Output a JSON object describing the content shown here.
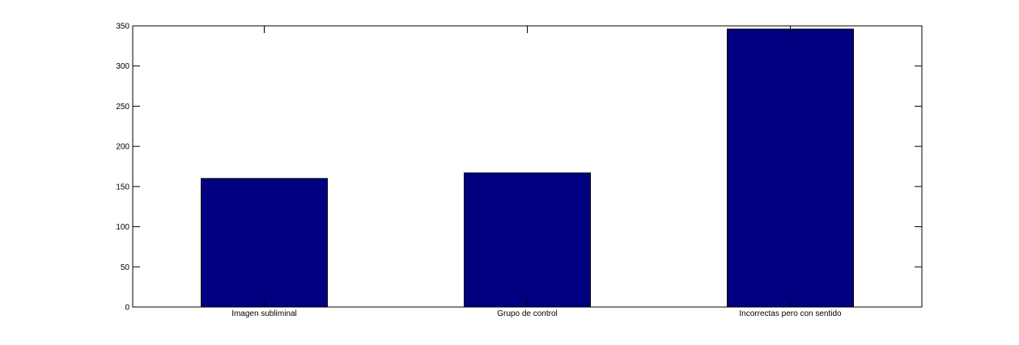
{
  "chart_data": {
    "type": "bar",
    "title": "",
    "xlabel": "",
    "ylabel": "",
    "categories": [
      "Imagen subliminal",
      "Grupo de control",
      "Incorrectas pero con sentido"
    ],
    "values": [
      160,
      167,
      346
    ],
    "ylim": [
      0,
      350
    ],
    "yticks": [
      "0",
      "50",
      "100",
      "150",
      "200",
      "250",
      "300",
      "350"
    ],
    "grid": false,
    "legend": "none",
    "bar_color": "#000080",
    "background": "#ffffff"
  }
}
